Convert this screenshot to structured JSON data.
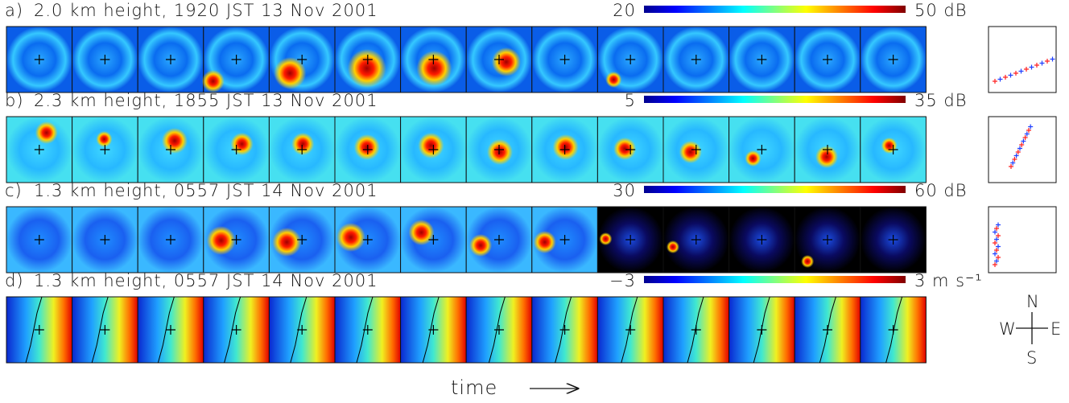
{
  "rows": [
    {
      "label": "a)",
      "title": "2.0 km height, 1920 JST 13 Nov 2001",
      "scale_min": "20",
      "scale_max": "50 dB"
    },
    {
      "label": "b)",
      "title": "2.3 km height, 1855 JST 13 Nov 2001",
      "scale_min": "5",
      "scale_max": "35 dB"
    },
    {
      "label": "c)",
      "title": "1.3 km height, 0557 JST 14 Nov 2001",
      "scale_min": "30",
      "scale_max": "60 dB"
    },
    {
      "label": "d)",
      "title": "1.3 km height, 0557 JST 14 Nov 2001",
      "scale_min": "−3",
      "scale_max": "3 m s⁻¹"
    }
  ],
  "compass": {
    "n": "N",
    "s": "S",
    "w": "W",
    "e": "E"
  },
  "time_label": "time"
}
